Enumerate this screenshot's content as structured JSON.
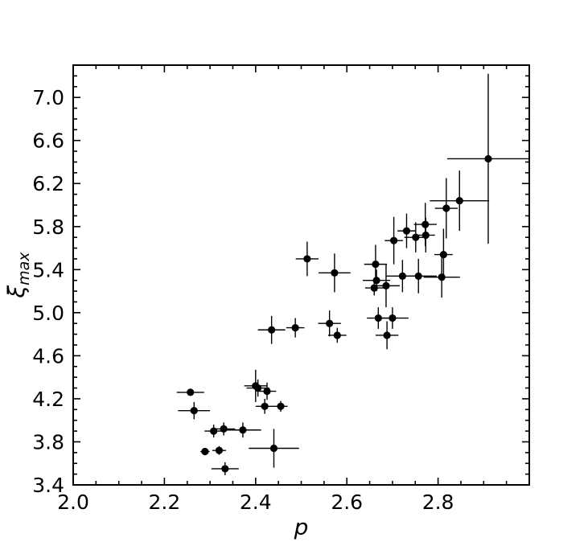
{
  "chart_data": {
    "type": "scatter",
    "title": "",
    "xlabel": "p",
    "ylabel_main": "ξ",
    "ylabel_sub": "max",
    "xlim": [
      2.0,
      3.0
    ],
    "ylim": [
      3.4,
      7.3
    ],
    "xticks": [
      2.0,
      2.2,
      2.4,
      2.6,
      2.8
    ],
    "xtick_labels": [
      "2.0",
      "2.2",
      "2.4",
      "2.6",
      "2.8"
    ],
    "yticks": [
      3.4,
      3.8,
      4.2,
      4.6,
      5.0,
      5.4,
      5.8,
      6.2,
      6.6,
      7.0
    ],
    "ytick_labels": [
      "3.4",
      "3.8",
      "4.2",
      "4.6",
      "5.0",
      "5.4",
      "5.8",
      "6.2",
      "6.6",
      "7.0"
    ],
    "grid": false,
    "marker_color": "#000000",
    "points": [
      {
        "x": 2.257,
        "y": 4.26,
        "xerr": 0.03,
        "yerr": 0.03
      },
      {
        "x": 2.265,
        "y": 4.09,
        "xerr": 0.035,
        "yerr": 0.08
      },
      {
        "x": 2.289,
        "y": 3.71,
        "xerr": 0.01,
        "yerr": 0.02
      },
      {
        "x": 2.308,
        "y": 3.9,
        "xerr": 0.02,
        "yerr": 0.06
      },
      {
        "x": 2.32,
        "y": 3.72,
        "xerr": 0.015,
        "yerr": 0.04
      },
      {
        "x": 2.33,
        "y": 3.92,
        "xerr": 0.025,
        "yerr": 0.06
      },
      {
        "x": 2.333,
        "y": 3.55,
        "xerr": 0.03,
        "yerr": 0.06
      },
      {
        "x": 2.372,
        "y": 3.91,
        "xerr": 0.04,
        "yerr": 0.07
      },
      {
        "x": 2.4,
        "y": 4.32,
        "xerr": 0.025,
        "yerr": 0.15
      },
      {
        "x": 2.405,
        "y": 4.3,
        "xerr": 0.025,
        "yerr": 0.08
      },
      {
        "x": 2.42,
        "y": 4.13,
        "xerr": 0.02,
        "yerr": 0.07
      },
      {
        "x": 2.425,
        "y": 4.27,
        "xerr": 0.02,
        "yerr": 0.08
      },
      {
        "x": 2.455,
        "y": 4.13,
        "xerr": 0.015,
        "yerr": 0.05
      },
      {
        "x": 2.44,
        "y": 3.74,
        "xerr": 0.055,
        "yerr": 0.18
      },
      {
        "x": 2.435,
        "y": 4.84,
        "xerr": 0.03,
        "yerr": 0.13
      },
      {
        "x": 2.487,
        "y": 4.86,
        "xerr": 0.02,
        "yerr": 0.09
      },
      {
        "x": 2.513,
        "y": 5.5,
        "xerr": 0.025,
        "yerr": 0.16
      },
      {
        "x": 2.562,
        "y": 4.9,
        "xerr": 0.025,
        "yerr": 0.12
      },
      {
        "x": 2.573,
        "y": 5.37,
        "xerr": 0.035,
        "yerr": 0.18
      },
      {
        "x": 2.579,
        "y": 4.79,
        "xerr": 0.02,
        "yerr": 0.07
      },
      {
        "x": 2.66,
        "y": 5.23,
        "xerr": 0.02,
        "yerr": 0.07
      },
      {
        "x": 2.663,
        "y": 5.45,
        "xerr": 0.025,
        "yerr": 0.18
      },
      {
        "x": 2.665,
        "y": 5.3,
        "xerr": 0.03,
        "yerr": 0.1
      },
      {
        "x": 2.669,
        "y": 4.95,
        "xerr": 0.025,
        "yerr": 0.1
      },
      {
        "x": 2.686,
        "y": 5.25,
        "xerr": 0.03,
        "yerr": 0.2
      },
      {
        "x": 2.688,
        "y": 4.79,
        "xerr": 0.025,
        "yerr": 0.13
      },
      {
        "x": 2.7,
        "y": 4.95,
        "xerr": 0.035,
        "yerr": 0.1
      },
      {
        "x": 2.703,
        "y": 5.67,
        "xerr": 0.02,
        "yerr": 0.22
      },
      {
        "x": 2.722,
        "y": 5.34,
        "xerr": 0.035,
        "yerr": 0.15
      },
      {
        "x": 2.731,
        "y": 5.76,
        "xerr": 0.02,
        "yerr": 0.16
      },
      {
        "x": 2.751,
        "y": 5.7,
        "xerr": 0.025,
        "yerr": 0.14
      },
      {
        "x": 2.757,
        "y": 5.34,
        "xerr": 0.04,
        "yerr": 0.16
      },
      {
        "x": 2.772,
        "y": 5.82,
        "xerr": 0.025,
        "yerr": 0.2
      },
      {
        "x": 2.773,
        "y": 5.72,
        "xerr": 0.02,
        "yerr": 0.16
      },
      {
        "x": 2.808,
        "y": 5.33,
        "xerr": 0.04,
        "yerr": 0.19
      },
      {
        "x": 2.812,
        "y": 5.54,
        "xerr": 0.02,
        "yerr": 0.24
      },
      {
        "x": 2.818,
        "y": 5.97,
        "xerr": 0.025,
        "yerr": 0.28
      },
      {
        "x": 2.847,
        "y": 6.04,
        "xerr": 0.065,
        "yerr": 0.28
      },
      {
        "x": 2.91,
        "y": 6.43,
        "xerr": 0.09,
        "yerr": 0.79
      }
    ]
  }
}
